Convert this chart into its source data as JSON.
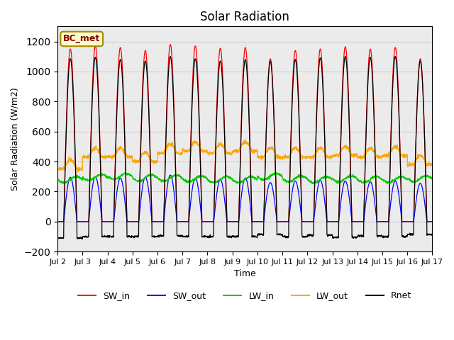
{
  "title": "Solar Radiation",
  "ylabel": "Solar Radiation (W/m2)",
  "xlabel": "Time",
  "ylim": [
    -200,
    1300
  ],
  "yticks": [
    -200,
    0,
    200,
    400,
    600,
    800,
    1000,
    1200
  ],
  "start_day": 2,
  "end_day": 17,
  "n_days": 15,
  "points_per_day": 144,
  "sw_in_max": [
    1150,
    1170,
    1160,
    1140,
    1180,
    1170,
    1155,
    1160,
    1085,
    1140,
    1150,
    1165,
    1150,
    1160,
    1085
  ],
  "sw_out_max": [
    295,
    300,
    290,
    295,
    310,
    290,
    280,
    290,
    260,
    270,
    275,
    270,
    265,
    270,
    255
  ],
  "lw_in_base": [
    280,
    295,
    300,
    290,
    290,
    285,
    280,
    280,
    300,
    285,
    280,
    285,
    280,
    280,
    285
  ],
  "lw_out_base": [
    350,
    430,
    430,
    400,
    455,
    470,
    455,
    470,
    430,
    430,
    430,
    440,
    430,
    440,
    380
  ],
  "rnet_min": [
    -110,
    -100,
    -100,
    -100,
    -95,
    -100,
    -100,
    -100,
    -85,
    -100,
    -90,
    -105,
    -95,
    -100,
    -85
  ],
  "rnet_max": [
    1085,
    1095,
    1080,
    1070,
    1100,
    1085,
    1070,
    1080,
    1070,
    1080,
    1090,
    1100,
    1095,
    1100,
    1070
  ],
  "colors": {
    "SW_in": "#ff0000",
    "SW_out": "#0000ff",
    "LW_in": "#00cc00",
    "LW_out": "#ffa500",
    "Rnet": "#000000"
  },
  "tick_labels": [
    "Jul 2",
    "Jul 3",
    "Jul 4",
    "Jul 5",
    "Jul 6",
    "Jul 7",
    "Jul 8",
    "Jul 9",
    "Jul 10",
    "Jul 11",
    "Jul 12",
    "Jul 13",
    "Jul 14",
    "Jul 15",
    "Jul 16",
    "Jul 17"
  ],
  "legend_label": "BC_met",
  "background_color": "#ffffff",
  "grid_color": "#d0d0d0"
}
